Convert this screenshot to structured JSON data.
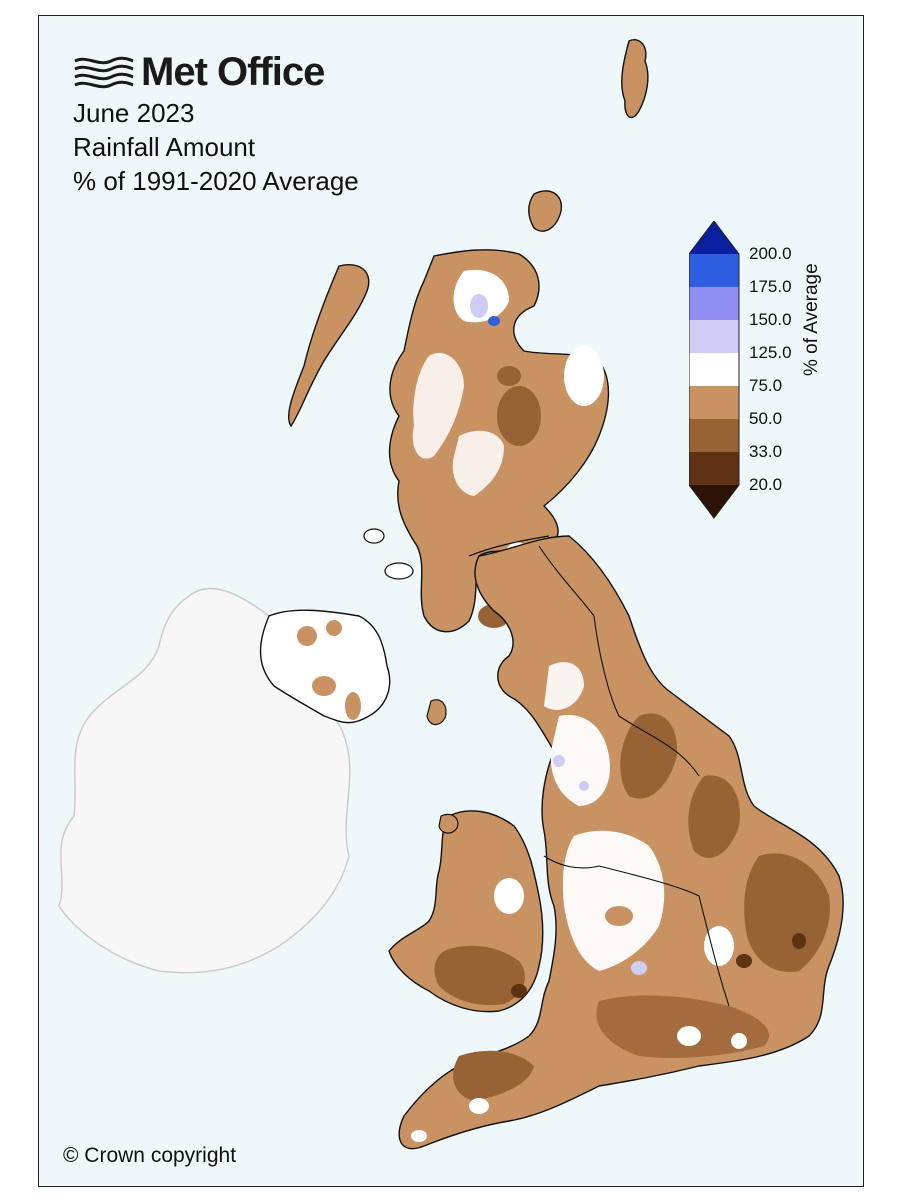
{
  "organisation": "Met Office",
  "title": {
    "line1": "June 2023",
    "line2": "Rainfall Amount",
    "line3": "% of 1991-2020 Average"
  },
  "copyright": "© Crown copyright",
  "legend": {
    "title": "% of Average",
    "ticks": [
      "200.0",
      "175.0",
      "150.0",
      "125.0",
      "75.0",
      "50.0",
      "33.0",
      "20.0"
    ],
    "bands": [
      {
        "range": ">200",
        "color": "#0a1f9e"
      },
      {
        "range": "175-200",
        "color": "#2e5fe0"
      },
      {
        "range": "150-175",
        "color": "#8f8ff2"
      },
      {
        "range": "125-150",
        "color": "#cdcdf5"
      },
      {
        "range": "75-125",
        "color": "#ffffff"
      },
      {
        "range": "50-75",
        "color": "#c99263"
      },
      {
        "range": "33-50",
        "color": "#986334"
      },
      {
        "range": "20-33",
        "color": "#5e3212"
      },
      {
        "range": "<20",
        "color": "#2c1306"
      }
    ]
  },
  "colors": {
    "sea": "#eef7fa",
    "ireland_outside": "#f7f7f7",
    "outline": "#111111"
  }
}
